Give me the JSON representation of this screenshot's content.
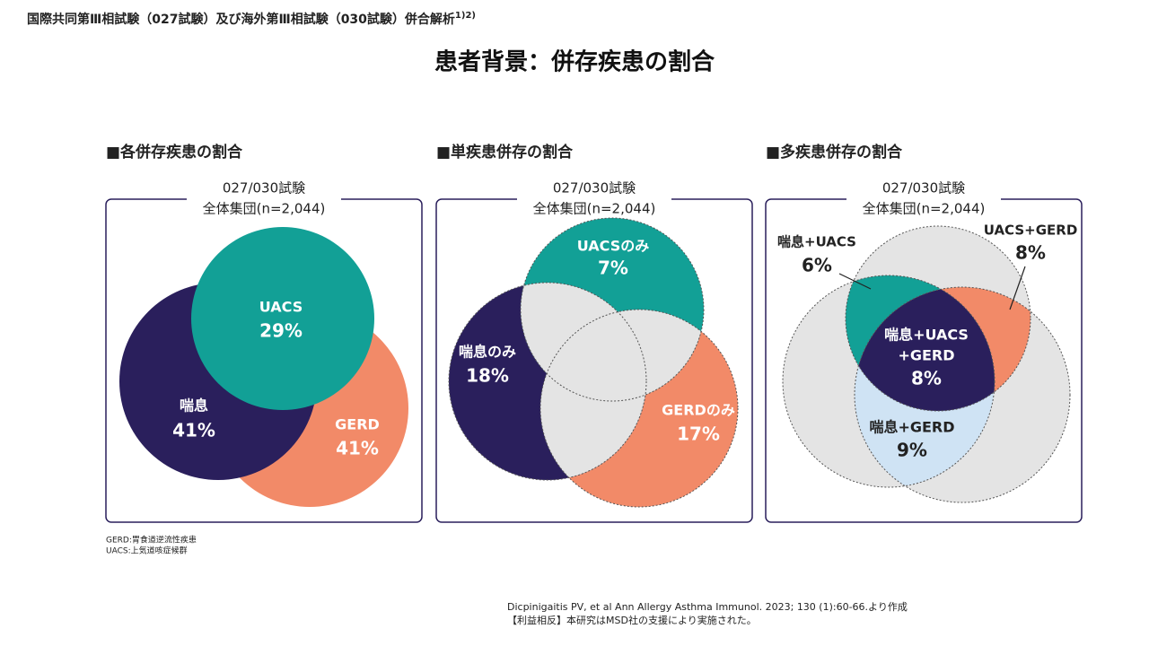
{
  "header": {
    "title": "国際共同第Ⅲ相試験（027試験）及び海外第Ⅲ相試験（030試験）併合解析",
    "superscript": "1)2)"
  },
  "main_title": "患者背景：併存疾患の割合",
  "panels": [
    {
      "heading": "■各併存疾患の割合",
      "subtitle": [
        "027/030試験",
        "全体集団(n=2,044)"
      ],
      "labels": [
        {
          "name": "UACS",
          "value": "29%"
        },
        {
          "name": "喘息",
          "value": "41%"
        },
        {
          "name": "GERD",
          "value": "41%"
        }
      ]
    },
    {
      "heading": "■単疾患併存の割合",
      "subtitle": [
        "027/030試験",
        "全体集団(n=2,044)"
      ],
      "labels": [
        {
          "name": "UACSのみ",
          "value": "7%"
        },
        {
          "name": "喘息のみ",
          "value": "18%"
        },
        {
          "name": "GERDのみ",
          "value": "17%"
        }
      ]
    },
    {
      "heading": "■多疾患併存の割合",
      "subtitle": [
        "027/030試験",
        "全体集団(n=2,044)"
      ],
      "labels": [
        {
          "name": "喘息+UACS",
          "value": "6%"
        },
        {
          "name": "UACS+GERD",
          "value": "8%"
        },
        {
          "name": [
            "喘息+UACS",
            "+GERD"
          ],
          "value": "8%"
        },
        {
          "name": "喘息+GERD",
          "value": "9%"
        }
      ]
    }
  ],
  "footnotes": [
    "GERD:胃食道逆流性疾患",
    "UACS:上気道咳症候群"
  ],
  "citation": [
    "Dicpinigaitis PV, et al Ann Allergy Asthma Immunol. 2023; 130 (1):60-66.より作成",
    "【利益相反】本研究はMSD社の支援により実施された。"
  ]
}
